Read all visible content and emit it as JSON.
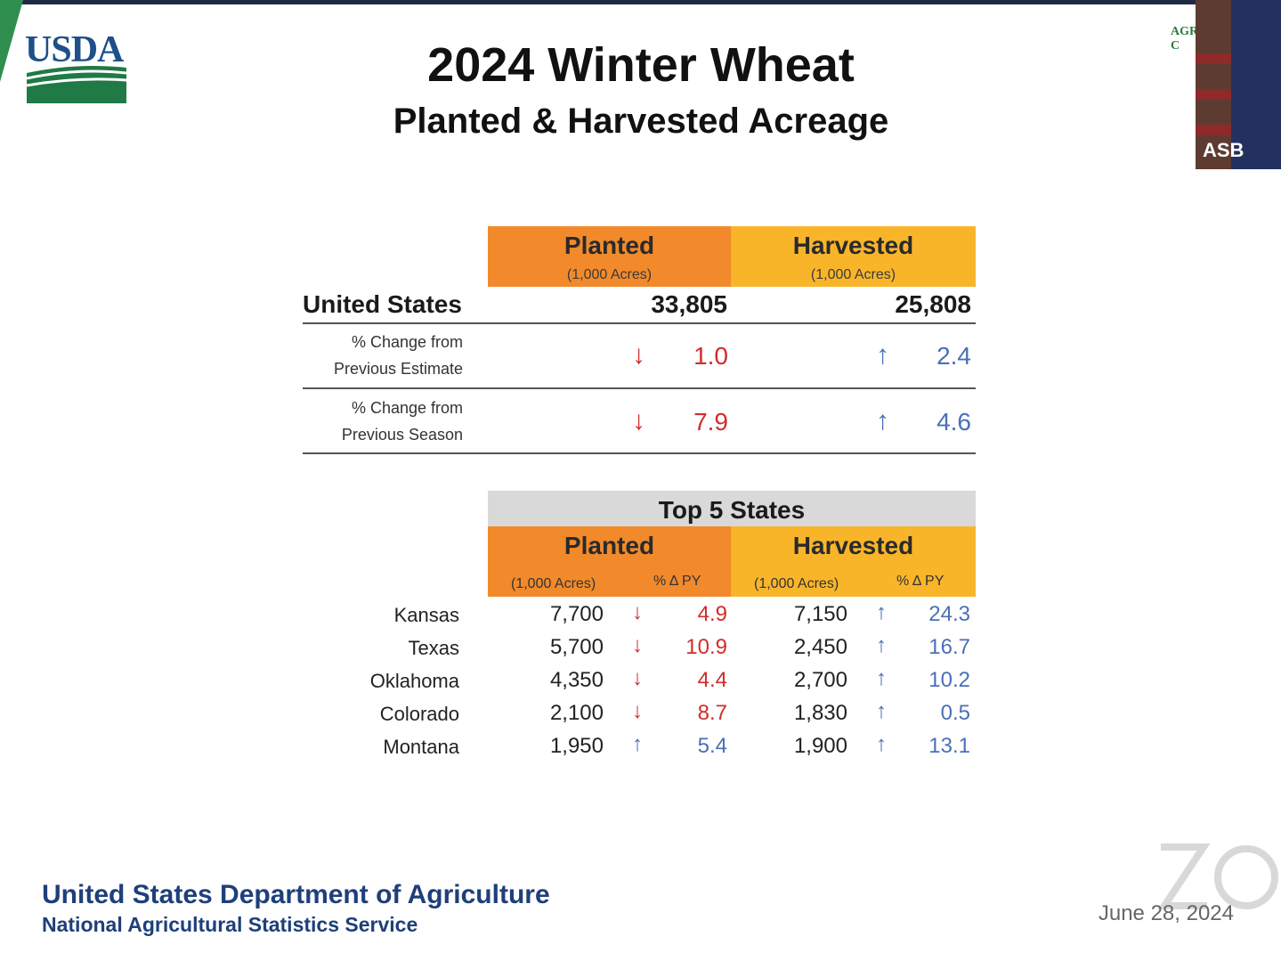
{
  "slide": {
    "title": "2024 Winter Wheat",
    "subtitle": "Planted & Harvested Acreage",
    "logo_text": "USDA",
    "footer_line1": "United States Department of Agriculture",
    "footer_line2": "National Agricultural Statistics Service",
    "date": "June 28, 2024"
  },
  "camera": {
    "label": "ASB",
    "seal_text": "AGRI C"
  },
  "summary": {
    "planted_header": "Planted",
    "harvested_header": "Harvested",
    "unit": "(1,000 Acres)",
    "country_label": "United States",
    "planted_total": "33,805",
    "harvested_total": "25,808",
    "rows": [
      {
        "label_line1": "% Change from",
        "label_line2": "Previous Estimate",
        "planted_dir": "↓",
        "planted_value": "1.0",
        "harvested_dir": "↑",
        "harvested_value": "2.4"
      },
      {
        "label_line1": "% Change from",
        "label_line2": "Previous Season",
        "planted_dir": "↓",
        "planted_value": "7.9",
        "harvested_dir": "↑",
        "harvested_value": "4.6"
      }
    ]
  },
  "top5": {
    "header": "Top 5 States",
    "planted_header": "Planted",
    "harvested_header": "Harvested",
    "unit": "(1,000 Acres)",
    "pct_header": "% Δ PY",
    "states": [
      {
        "name": "Kansas",
        "planted": "7,700",
        "p_dir": "↓",
        "p_pct": "4.9",
        "harvested": "7,150",
        "h_dir": "↑",
        "h_pct": "24.3"
      },
      {
        "name": "Texas",
        "planted": "5,700",
        "p_dir": "↓",
        "p_pct": "10.9",
        "harvested": "2,450",
        "h_dir": "↑",
        "h_pct": "16.7"
      },
      {
        "name": "Oklahoma",
        "planted": "4,350",
        "p_dir": "↓",
        "p_pct": "4.4",
        "harvested": "2,700",
        "h_dir": "↑",
        "h_pct": "10.2"
      },
      {
        "name": "Colorado",
        "planted": "2,100",
        "p_dir": "↓",
        "p_pct": "8.7",
        "harvested": "1,830",
        "h_dir": "↑",
        "h_pct": "0.5"
      },
      {
        "name": "Montana",
        "planted": "1,950",
        "p_dir": "↑",
        "p_pct": "5.4",
        "harvested": "1,900",
        "h_dir": "↑",
        "h_pct": "13.1"
      }
    ]
  },
  "colors": {
    "planted": "#f28a2b",
    "harvested": "#f9b52a",
    "decrease": "#d22c2c",
    "increase": "#4a6fb8",
    "footer": "#1e3f7a"
  }
}
